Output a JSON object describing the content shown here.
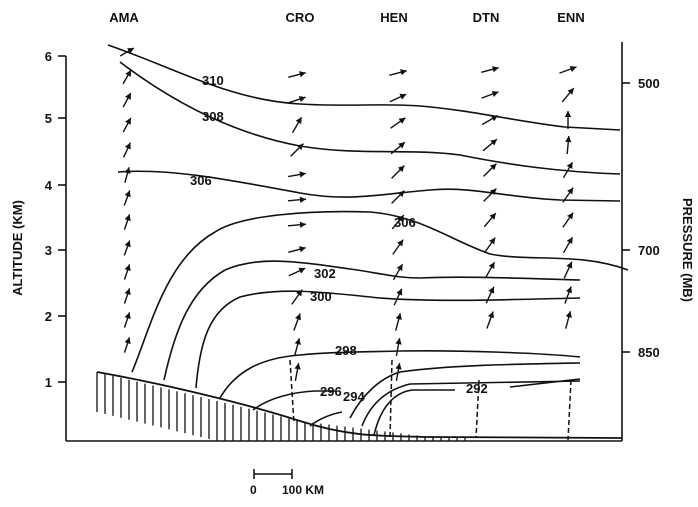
{
  "stations": [
    "AMA",
    "CRO",
    "HEN",
    "DTN",
    "ENN"
  ],
  "left_axis": {
    "title": "ALTITUDE (KM)",
    "ticks": [
      "6",
      "5",
      "4",
      "3",
      "2",
      "1"
    ]
  },
  "right_axis": {
    "title": "PRESSURE (MB)",
    "ticks": [
      "500",
      "700",
      "850"
    ]
  },
  "isentropes": [
    "310",
    "308",
    "306",
    "306",
    "302",
    "300",
    "298",
    "296",
    "294",
    "292"
  ],
  "scale_bar": {
    "start": "0",
    "end": "100 KM"
  },
  "colors": {
    "ink": "#111111",
    "background": "#ffffff"
  }
}
